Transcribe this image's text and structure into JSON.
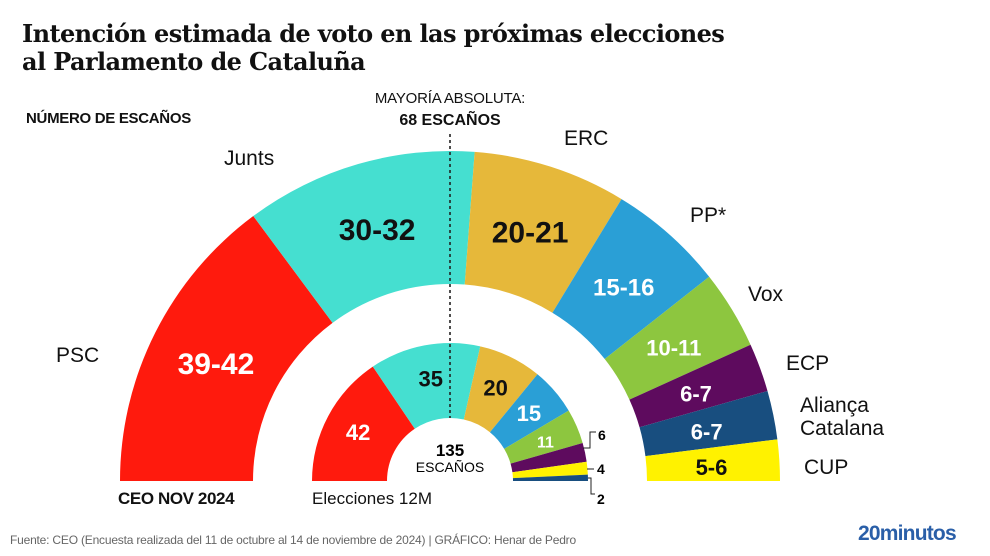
{
  "title_line1": "Intención estimada de voto en las próximas elecciones",
  "title_line2": "al Parlamento de Cataluña",
  "subtitle": "NÚMERO DE ESCAÑOS",
  "majority_line1": "MAYORÍA ABSOLUTA:",
  "majority_line2": "68 ESCAÑOS",
  "outer_caption": "CEO NOV 2024",
  "inner_caption": "Elecciones 12M",
  "total_number": "135",
  "total_label": "ESCAÑOS",
  "footer": "Fuente: CEO (Encuesta realizada del 11 de octubre al 14 de noviembre de 2024)  |  GRÁFICO: Henar de Pedro",
  "brand": "20minutos",
  "chart_data": {
    "type": "pie",
    "subtype": "double semicircle (hemicycle)",
    "title": "Intención estimada de voto en las próximas elecciones al Parlamento de Cataluña",
    "total_seats": 135,
    "majority": 68,
    "series": [
      {
        "name": "CEO NOV 2024",
        "parties": [
          {
            "party": "PSC",
            "label": "39-42",
            "min": 39,
            "max": 42,
            "color": "#ff1a0d",
            "text_color": "#ffffff"
          },
          {
            "party": "Junts",
            "label": "30-32",
            "min": 30,
            "max": 32,
            "color": "#45dfd0",
            "text_color": "#111111"
          },
          {
            "party": "ERC",
            "label": "20-21",
            "min": 20,
            "max": 21,
            "color": "#e6b83a",
            "text_color": "#111111"
          },
          {
            "party": "PP*",
            "label": "15-16",
            "min": 15,
            "max": 16,
            "color": "#2a9fd6",
            "text_color": "#ffffff"
          },
          {
            "party": "Vox",
            "label": "10-11",
            "min": 10,
            "max": 11,
            "color": "#8dc63f",
            "text_color": "#ffffff"
          },
          {
            "party": "ECP",
            "label": "6-7",
            "min": 6,
            "max": 7,
            "color": "#5e0b5e",
            "text_color": "#ffffff"
          },
          {
            "party": "Aliança Catalana",
            "label": "6-7",
            "min": 6,
            "max": 7,
            "color": "#184e7f",
            "text_color": "#ffffff"
          },
          {
            "party": "CUP",
            "label": "5-6",
            "min": 5,
            "max": 6,
            "color": "#fff200",
            "text_color": "#111111"
          }
        ]
      },
      {
        "name": "Elecciones 12M",
        "parties": [
          {
            "party": "PSC",
            "label": "42",
            "value": 42,
            "color": "#ff1a0d",
            "text_color": "#ffffff"
          },
          {
            "party": "Junts",
            "label": "35",
            "value": 35,
            "color": "#45dfd0",
            "text_color": "#111111"
          },
          {
            "party": "ERC",
            "label": "20",
            "value": 20,
            "color": "#e6b83a",
            "text_color": "#111111"
          },
          {
            "party": "PP*",
            "label": "15",
            "value": 15,
            "color": "#2a9fd6",
            "text_color": "#ffffff"
          },
          {
            "party": "Vox",
            "label": "11",
            "value": 11,
            "color": "#8dc63f",
            "text_color": "#ffffff"
          },
          {
            "party": "ECP",
            "label": "6",
            "value": 6,
            "color": "#5e0b5e",
            "text_color": "#111111"
          },
          {
            "party": "CUP",
            "label": "4",
            "value": 4,
            "color": "#fff200",
            "text_color": "#111111"
          },
          {
            "party": "Aliança Catalana",
            "label": "2",
            "value": 2,
            "color": "#184e7f",
            "text_color": "#111111"
          }
        ]
      }
    ],
    "party_labels": [
      "PSC",
      "Junts",
      "ERC",
      "PP*",
      "Vox",
      "ECP",
      "Aliança",
      "Catalana",
      "CUP"
    ]
  }
}
